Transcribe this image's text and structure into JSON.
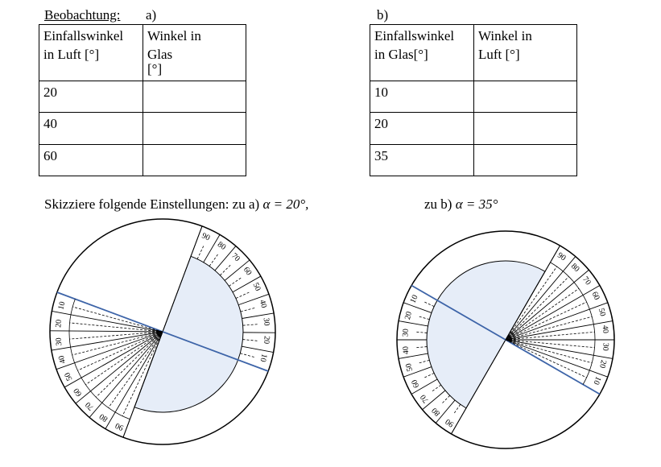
{
  "header": {
    "title": "Beobachtung:",
    "part_a": "a)",
    "part_b": "b)"
  },
  "table_a": {
    "headers": [
      [
        "Einfallswinkel",
        "in Luft [°]"
      ],
      [
        "Winkel in",
        "Glas",
        "[°]"
      ]
    ],
    "rows": [
      20,
      40,
      60
    ]
  },
  "table_b": {
    "headers": [
      [
        "Einfallswinkel",
        "in Glas[°]"
      ],
      [
        "Winkel in",
        "Luft [°]"
      ]
    ],
    "rows": [
      10,
      20,
      35
    ]
  },
  "instruction": {
    "text": "Skizziere folgende Einstellungen: zu a)",
    "formula_a": "α = 20°,",
    "label_b": "zu b)",
    "formula_b": "α = 35°"
  },
  "diagrams": [
    {
      "air_scale": [
        10,
        20,
        30,
        40,
        50,
        60,
        70,
        80,
        90
      ],
      "glass_scale": [
        10,
        20,
        30,
        40,
        50,
        60,
        70,
        80,
        90
      ]
    },
    {
      "air_scale": [
        10,
        20,
        30,
        40,
        50,
        60,
        70,
        80,
        90
      ],
      "glass_scale": [
        10,
        20,
        30,
        40,
        50,
        60,
        70,
        80,
        90
      ]
    }
  ]
}
